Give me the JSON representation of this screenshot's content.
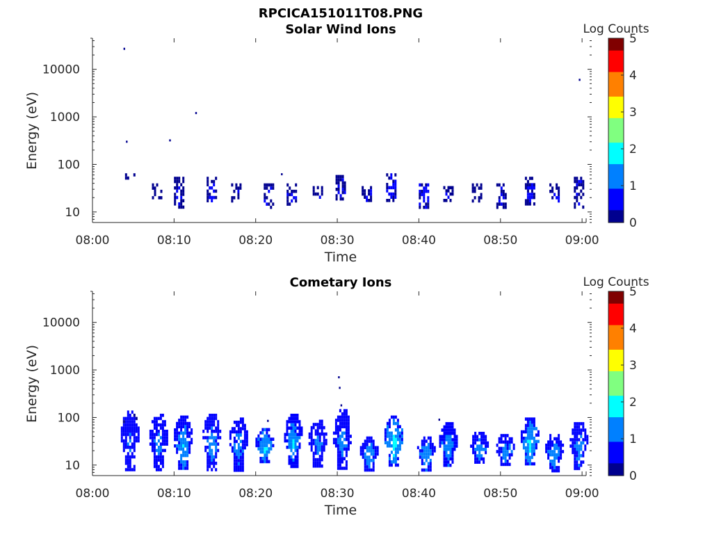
{
  "figure": {
    "title": "RPCICA151011T08.PNG"
  },
  "colormap": [
    "#00008f",
    "#0000ff",
    "#0080ff",
    "#00ffff",
    "#80ff80",
    "#ffff00",
    "#ff8000",
    "#ff0000",
    "#800000"
  ],
  "chart_data": [
    {
      "type": "heatmap",
      "title": "Solar Wind Ions",
      "xlabel": "Time",
      "ylabel": "Energy (eV)",
      "x_ticks": [
        "08:00",
        "08:10",
        "08:20",
        "08:30",
        "08:40",
        "08:50",
        "09:00"
      ],
      "y_ticks": [
        "10",
        "100",
        "1000",
        "10000"
      ],
      "yscale": "log",
      "ylim": [
        6,
        45000
      ],
      "xlim_minutes": [
        0,
        60.5
      ],
      "colorbar": {
        "label": "Log Counts",
        "ticks": [
          "0",
          "1",
          "2",
          "3",
          "4",
          "5"
        ],
        "range": [
          0,
          5
        ]
      },
      "clusters": [
        {
          "t": 4.5,
          "e_min": 50,
          "e_max": 65,
          "level": 0.3
        },
        {
          "t": 7.8,
          "e_min": 20,
          "e_max": 40,
          "level": 0.3
        },
        {
          "t": 10.5,
          "e_min": 12,
          "e_max": 55,
          "level": 0.4
        },
        {
          "t": 14.5,
          "e_min": 18,
          "e_max": 55,
          "level": 0.4
        },
        {
          "t": 17.5,
          "e_min": 18,
          "e_max": 40,
          "level": 0.3
        },
        {
          "t": 21.5,
          "e_min": 12,
          "e_max": 40,
          "level": 0.4
        },
        {
          "t": 24.3,
          "e_min": 15,
          "e_max": 40,
          "level": 0.5
        },
        {
          "t": 27.5,
          "e_min": 20,
          "e_max": 35,
          "level": 0.3
        },
        {
          "t": 30.3,
          "e_min": 18,
          "e_max": 60,
          "level": 0.4
        },
        {
          "t": 33.5,
          "e_min": 18,
          "e_max": 35,
          "level": 0.4
        },
        {
          "t": 36.5,
          "e_min": 18,
          "e_max": 65,
          "level": 0.5
        },
        {
          "t": 40.5,
          "e_min": 12,
          "e_max": 40,
          "level": 0.5
        },
        {
          "t": 43.5,
          "e_min": 18,
          "e_max": 35,
          "level": 0.3
        },
        {
          "t": 47.0,
          "e_min": 18,
          "e_max": 40,
          "level": 0.3
        },
        {
          "t": 50.0,
          "e_min": 12,
          "e_max": 40,
          "level": 0.4
        },
        {
          "t": 53.5,
          "e_min": 15,
          "e_max": 55,
          "level": 0.5
        },
        {
          "t": 56.5,
          "e_min": 18,
          "e_max": 40,
          "level": 0.4
        },
        {
          "t": 59.5,
          "e_min": 12,
          "e_max": 55,
          "level": 0.4
        }
      ],
      "points": [
        {
          "t": 3.9,
          "e": 27000
        },
        {
          "t": 4.2,
          "e": 300
        },
        {
          "t": 9.5,
          "e": 320
        },
        {
          "t": 12.7,
          "e": 1200
        },
        {
          "t": 23.2,
          "e": 62
        },
        {
          "t": 59.7,
          "e": 6000
        }
      ]
    },
    {
      "type": "heatmap",
      "title": "Cometary Ions",
      "xlabel": "Time",
      "ylabel": "Energy (eV)",
      "x_ticks": [
        "08:00",
        "08:10",
        "08:20",
        "08:30",
        "08:40",
        "08:50",
        "09:00"
      ],
      "y_ticks": [
        "10",
        "100",
        "1000",
        "10000"
      ],
      "yscale": "log",
      "ylim": [
        6,
        45000
      ],
      "xlim_minutes": [
        0,
        60.5
      ],
      "colorbar": {
        "label": "Log Counts",
        "ticks": [
          "0",
          "1",
          "2",
          "3",
          "4",
          "5"
        ],
        "range": [
          0,
          5
        ]
      },
      "clusters": [
        {
          "t": 4.5,
          "e_min": 8,
          "e_max": 140,
          "level": 1.0
        },
        {
          "t": 8.0,
          "e_min": 8,
          "e_max": 120,
          "level": 1.2
        },
        {
          "t": 11.0,
          "e_min": 8,
          "e_max": 110,
          "level": 1.5
        },
        {
          "t": 14.5,
          "e_min": 8,
          "e_max": 120,
          "level": 1.4
        },
        {
          "t": 17.8,
          "e_min": 8,
          "e_max": 100,
          "level": 1.3
        },
        {
          "t": 21.0,
          "e_min": 12,
          "e_max": 60,
          "level": 1.8
        },
        {
          "t": 24.5,
          "e_min": 10,
          "e_max": 120,
          "level": 1.6
        },
        {
          "t": 27.5,
          "e_min": 10,
          "e_max": 90,
          "level": 1.2
        },
        {
          "t": 30.5,
          "e_min": 8,
          "e_max": 150,
          "level": 1.3
        },
        {
          "t": 33.8,
          "e_min": 8,
          "e_max": 40,
          "level": 1.5
        },
        {
          "t": 36.8,
          "e_min": 10,
          "e_max": 110,
          "level": 1.9
        },
        {
          "t": 40.8,
          "e_min": 8,
          "e_max": 40,
          "level": 1.6
        },
        {
          "t": 43.5,
          "e_min": 10,
          "e_max": 80,
          "level": 1.5
        },
        {
          "t": 47.3,
          "e_min": 12,
          "e_max": 50,
          "level": 1.5
        },
        {
          "t": 50.5,
          "e_min": 10,
          "e_max": 45,
          "level": 1.4
        },
        {
          "t": 53.5,
          "e_min": 10,
          "e_max": 100,
          "level": 1.8
        },
        {
          "t": 56.5,
          "e_min": 8,
          "e_max": 45,
          "level": 1.5
        },
        {
          "t": 59.5,
          "e_min": 8,
          "e_max": 80,
          "level": 1.3
        }
      ],
      "points": [
        {
          "t": 30.2,
          "e": 700
        },
        {
          "t": 30.3,
          "e": 420
        },
        {
          "t": 30.5,
          "e": 180
        },
        {
          "t": 21.5,
          "e": 85
        },
        {
          "t": 42.5,
          "e": 90
        }
      ]
    }
  ]
}
